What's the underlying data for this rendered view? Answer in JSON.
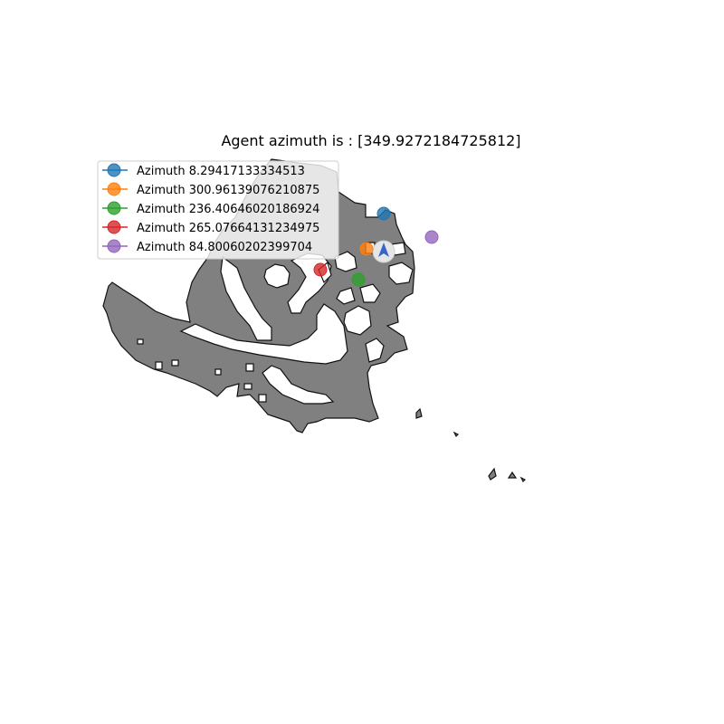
{
  "title": "Agent azimuth is : [349.9272184725812]",
  "legend": {
    "items": [
      {
        "label": "Azimuth 8.29417133334513",
        "color": "#1f77b4"
      },
      {
        "label": "Azimuth 300.96139076210875",
        "color": "#ff7f0e"
      },
      {
        "label": "Azimuth 236.40646020186924",
        "color": "#2ca02c"
      },
      {
        "label": "Azimuth 265.07664131234975",
        "color": "#d62728"
      },
      {
        "label": "Azimuth 84.80060202399704",
        "color": "#9467bd"
      }
    ]
  },
  "map": {
    "free_space_color": "#808080",
    "obstacle_color": "#ffffff",
    "edge_color": "#111111",
    "agent_icon": "agent-arrow-icon",
    "agent_color": "#3a64c8"
  }
}
